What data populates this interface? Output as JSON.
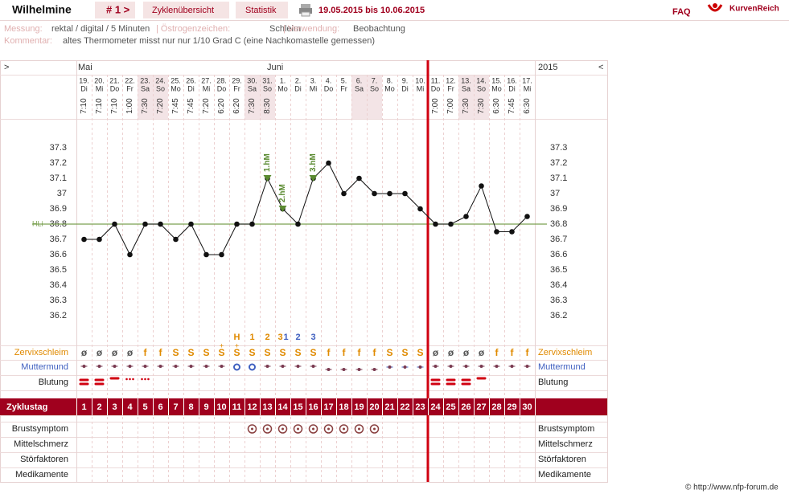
{
  "header": {
    "name": "Wilhelmine",
    "cycle": "# 1 >",
    "nav": [
      "Zyklenübersicht",
      "Statistik"
    ],
    "range": "19.05.2015 bis 10.06.2015",
    "faq": "FAQ",
    "brand": "KurvenReich"
  },
  "info": {
    "measure_label": "Messung:",
    "measure": "rektal / digital / 5 Minuten",
    "estrogen_label": "| Östrogenzeichen:",
    "estrogen": "Schleim",
    "use_label": "| Verwendung:",
    "use": "Beobachtung",
    "comment_label": "Kommentar:",
    "comment": "altes Thermometer misst nur nur 1/10 Grad C (eine Nachkomastelle gemessen)"
  },
  "chart": {
    "nav_left": ">",
    "nav_right": "<",
    "year": "2015",
    "months": [
      "Mai",
      "Juni"
    ],
    "days": [
      "19.",
      "20.",
      "21.",
      "22.",
      "23.",
      "24.",
      "25.",
      "26.",
      "27.",
      "28.",
      "29.",
      "30.",
      "31.",
      "1.",
      "2.",
      "3.",
      "4.",
      "5.",
      "6.",
      "7.",
      "8.",
      "9.",
      "10.",
      "11.",
      "12.",
      "13.",
      "14.",
      "15.",
      "16.",
      "17."
    ],
    "weekdays": [
      "Di",
      "Mi",
      "Do",
      "Fr",
      "Sa",
      "So",
      "Mo",
      "Di",
      "Mi",
      "Do",
      "Fr",
      "Sa",
      "So",
      "Mo",
      "Di",
      "Mi",
      "Do",
      "Fr",
      "Sa",
      "So",
      "Mo",
      "Di",
      "Mi",
      "Do",
      "Fr",
      "Sa",
      "So",
      "Mo",
      "Di",
      "Mi"
    ],
    "times": [
      "7:10",
      "7:10",
      "7:10",
      "1:00",
      "7:30",
      "7:20",
      "7:45",
      "7:45",
      "7:20",
      "6:20",
      "6:20",
      "7:30",
      "8:30",
      null,
      null,
      null,
      null,
      null,
      null,
      null,
      null,
      null,
      null,
      "7:00",
      "7:00",
      "7:30",
      "7:30",
      "6:30",
      "7:45",
      "6:30"
    ],
    "ylim": [
      36.1,
      37.4
    ],
    "yticks": [
      36.2,
      36.3,
      36.4,
      36.5,
      36.6,
      36.7,
      36.8,
      36.9,
      37,
      37.1,
      37.2,
      37.3
    ],
    "temperatures": [
      36.7,
      36.7,
      36.8,
      36.6,
      36.8,
      36.8,
      36.7,
      36.8,
      36.6,
      36.6,
      36.8,
      36.8,
      37.1,
      36.9,
      36.8,
      37.1,
      37.2,
      37.0,
      37.1,
      37.0,
      37.0,
      37.0,
      36.9,
      36.8,
      36.8,
      36.85,
      37.05,
      36.75,
      36.75,
      36.85
    ],
    "hli": {
      "label": "HLi",
      "value": 36.8
    },
    "hm_labels": [
      null,
      null,
      null,
      null,
      null,
      null,
      null,
      null,
      null,
      null,
      null,
      null,
      "1.hM",
      "2.hM",
      null,
      "3.hM",
      null,
      null,
      null,
      null,
      null,
      null,
      null,
      null,
      null,
      null,
      null,
      null,
      null,
      null
    ],
    "peak_orange": [
      null,
      null,
      null,
      null,
      null,
      null,
      null,
      null,
      null,
      null,
      "H",
      "1",
      "2",
      "3",
      null,
      null,
      null,
      null,
      null,
      null,
      null,
      null,
      null,
      null,
      null,
      null,
      null,
      null,
      null,
      null
    ],
    "peak_blue": [
      null,
      null,
      null,
      null,
      null,
      null,
      null,
      null,
      null,
      null,
      null,
      null,
      null,
      "1",
      "2",
      "3",
      null,
      null,
      null,
      null,
      null,
      null,
      null,
      null,
      null,
      null,
      null,
      null,
      null,
      null
    ],
    "zervix": [
      "ø",
      "ø",
      "ø",
      "ø",
      "f",
      "f",
      "S",
      "S",
      "S",
      "S",
      "S",
      "S",
      "S",
      "S",
      "S",
      "S",
      "f",
      "f",
      "f",
      "f",
      "S",
      "S",
      "S",
      "ø",
      "ø",
      "ø",
      "ø",
      "f",
      "f",
      "f"
    ],
    "cycle_days": [
      1,
      2,
      3,
      4,
      5,
      6,
      7,
      8,
      9,
      10,
      11,
      12,
      13,
      14,
      15,
      16,
      17,
      18,
      19,
      20,
      21,
      22,
      23,
      24,
      25,
      26,
      27,
      28,
      29,
      30
    ],
    "rows": {
      "zervix": "Zervixschleim",
      "muttermund": "Muttermund",
      "blutung": "Blutung",
      "zyklustag": "Zyklustag",
      "brust": "Brustsymptom",
      "mittel": "Mittelschmerz",
      "stoer": "Störfaktoren",
      "medi": "Medikamente"
    },
    "copyright": "© http://www.nfp-forum.de"
  }
}
